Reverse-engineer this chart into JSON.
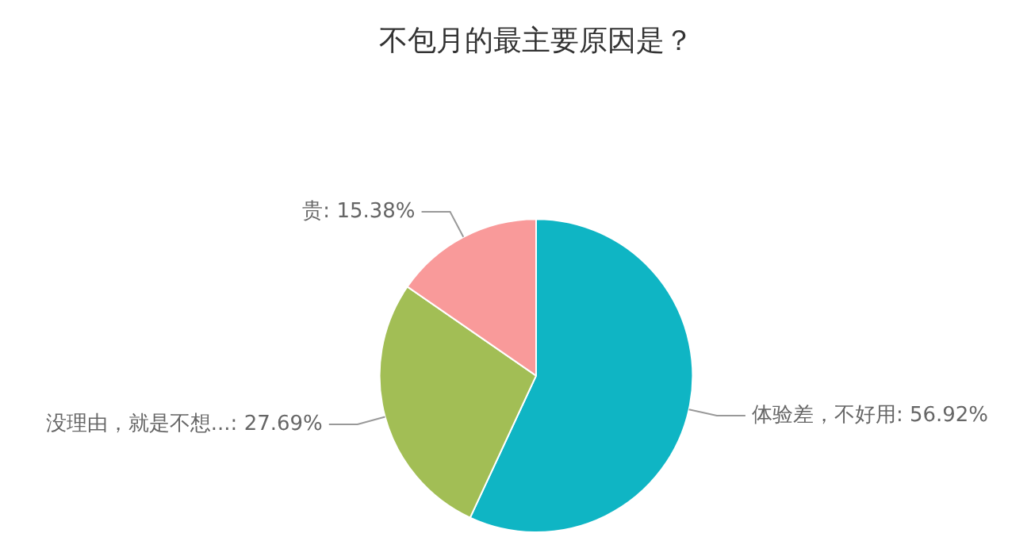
{
  "chart_data": {
    "type": "pie",
    "title": "不包月的最主要原因是？",
    "categories": [
      "体验差，不好用",
      "没理由，就是不想...",
      "贵"
    ],
    "values": [
      56.92,
      27.69,
      15.38
    ],
    "value_labels": [
      "56.92%",
      "27.69%",
      "15.38%"
    ],
    "colors": [
      "#0fb5c4",
      "#a2be55",
      "#f99a9a"
    ],
    "legend": false
  }
}
